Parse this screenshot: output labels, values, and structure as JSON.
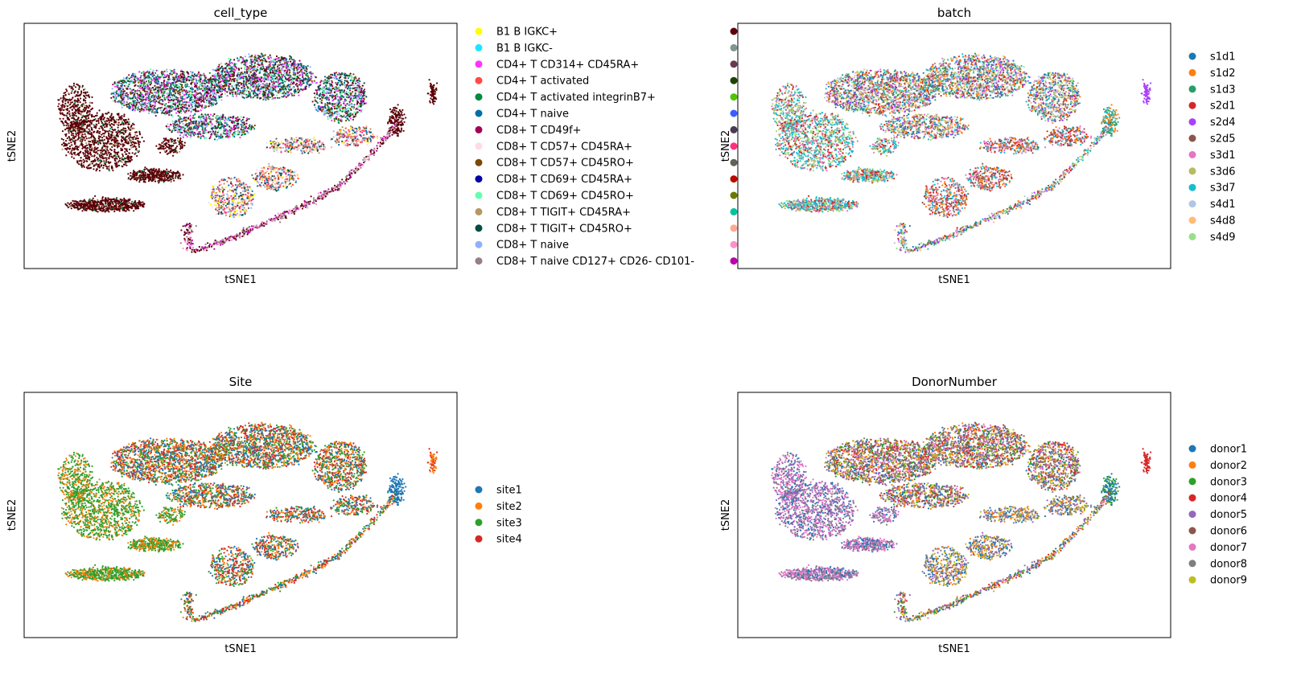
{
  "chart_data": [
    {
      "type": "scatter",
      "title": "cell_type",
      "xlabel": "tSNE1",
      "ylabel": "tSNE2",
      "legend": "right",
      "legend_labels": [
        "B1 B IGKC+",
        "B1 B IGKC-",
        "CD4+ T CD314+ CD45RA+",
        "CD4+ T activated",
        "CD4+ T activated integrinB7+",
        "CD4+ T naive",
        "CD8+ T CD49f+",
        "CD8+ T CD57+ CD45RA+",
        "CD8+ T CD57+ CD45RO+",
        "CD8+ T CD69+ CD45RA+",
        "CD8+ T CD69+ CD45RO+",
        "CD8+ T TIGIT+ CD45RA+",
        "CD8+ T TIGIT+ CD45RO+",
        "CD8+ T naive",
        "CD8+ T naive CD127+ CD26- CD101-"
      ],
      "legend_colors": [
        "#ffff00",
        "#1ce6ff",
        "#ff34ff",
        "#ff4a46",
        "#008941",
        "#006fa6",
        "#a30059",
        "#ffdbe5",
        "#7a4900",
        "#0000a6",
        "#63ffac",
        "#b79762",
        "#004d43",
        "#8fb0ff",
        "#997d87"
      ],
      "extra_legend_markers": [
        "#5a0007",
        "#809693",
        "#6a3a4c",
        "#1b4400",
        "#4fc601",
        "#3b5dff",
        "#4a3b53",
        "#ff2f80",
        "#61615a",
        "#ba0900",
        "#6b7900",
        "#00c2a0",
        "#ffaa92",
        "#ff90c9",
        "#b903aa"
      ]
    },
    {
      "type": "scatter",
      "title": "batch",
      "xlabel": "tSNE1",
      "ylabel": "tSNE2",
      "legend": "right",
      "legend_labels": [
        "s1d1",
        "s1d2",
        "s1d3",
        "s2d1",
        "s2d4",
        "s2d5",
        "s3d1",
        "s3d6",
        "s3d7",
        "s4d1",
        "s4d8",
        "s4d9"
      ],
      "legend_colors": [
        "#1f77b4",
        "#ff7f0e",
        "#279e68",
        "#d62728",
        "#aa40fc",
        "#8c564b",
        "#e377c2",
        "#b5bd61",
        "#17becf",
        "#aec7e8",
        "#ffbb78",
        "#98df8a"
      ]
    },
    {
      "type": "scatter",
      "title": "Site",
      "xlabel": "tSNE1",
      "ylabel": "tSNE2",
      "legend": "right",
      "legend_labels": [
        "site1",
        "site2",
        "site3",
        "site4"
      ],
      "legend_colors": [
        "#1f77b4",
        "#ff7f0e",
        "#2ca02c",
        "#d62728"
      ]
    },
    {
      "type": "scatter",
      "title": "DonorNumber",
      "xlabel": "tSNE1",
      "ylabel": "tSNE2",
      "legend": "right",
      "legend_labels": [
        "donor1",
        "donor2",
        "donor3",
        "donor4",
        "donor5",
        "donor6",
        "donor7",
        "donor8",
        "donor9"
      ],
      "legend_colors": [
        "#1f77b4",
        "#ff7f0e",
        "#2ca02c",
        "#d62728",
        "#9467bd",
        "#8c564b",
        "#e377c2",
        "#7f7f7f",
        "#bcbd22"
      ]
    }
  ]
}
